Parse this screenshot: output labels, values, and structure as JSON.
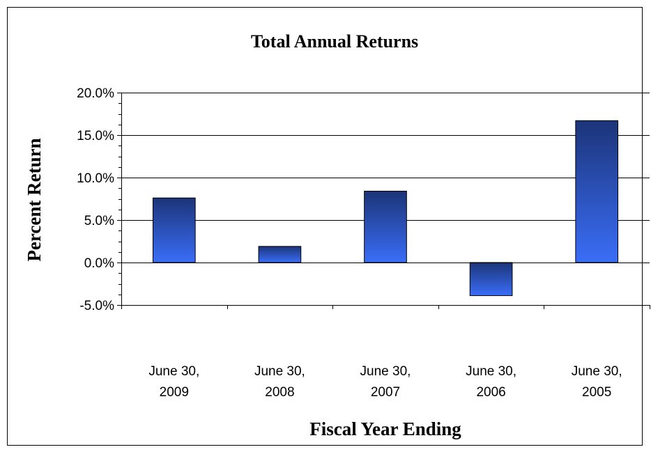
{
  "chart_data": {
    "type": "bar",
    "title": "Total Annual Returns",
    "xlabel": "Fiscal Year Ending",
    "ylabel": "Percent Return",
    "categories": [
      [
        "June 30,",
        "2009"
      ],
      [
        "June 30,",
        "2008"
      ],
      [
        "June 30,",
        "2007"
      ],
      [
        "June 30,",
        "2006"
      ],
      [
        "June 30,",
        "2005"
      ]
    ],
    "values": [
      7.6,
      1.9,
      8.4,
      -3.9,
      16.7
    ],
    "ylim": [
      -5,
      20
    ],
    "yticks": [
      20,
      15,
      10,
      5,
      0,
      -5
    ],
    "ytick_labels": [
      "20.0%",
      "15.0%",
      "10.0%",
      "5.0%",
      "0.0%",
      "-5.0%"
    ],
    "grid": true,
    "legend": "none",
    "colors": {
      "bar_top": "#1c3478",
      "bar_bottom": "#3a6ef8",
      "grid": "#000000"
    }
  }
}
